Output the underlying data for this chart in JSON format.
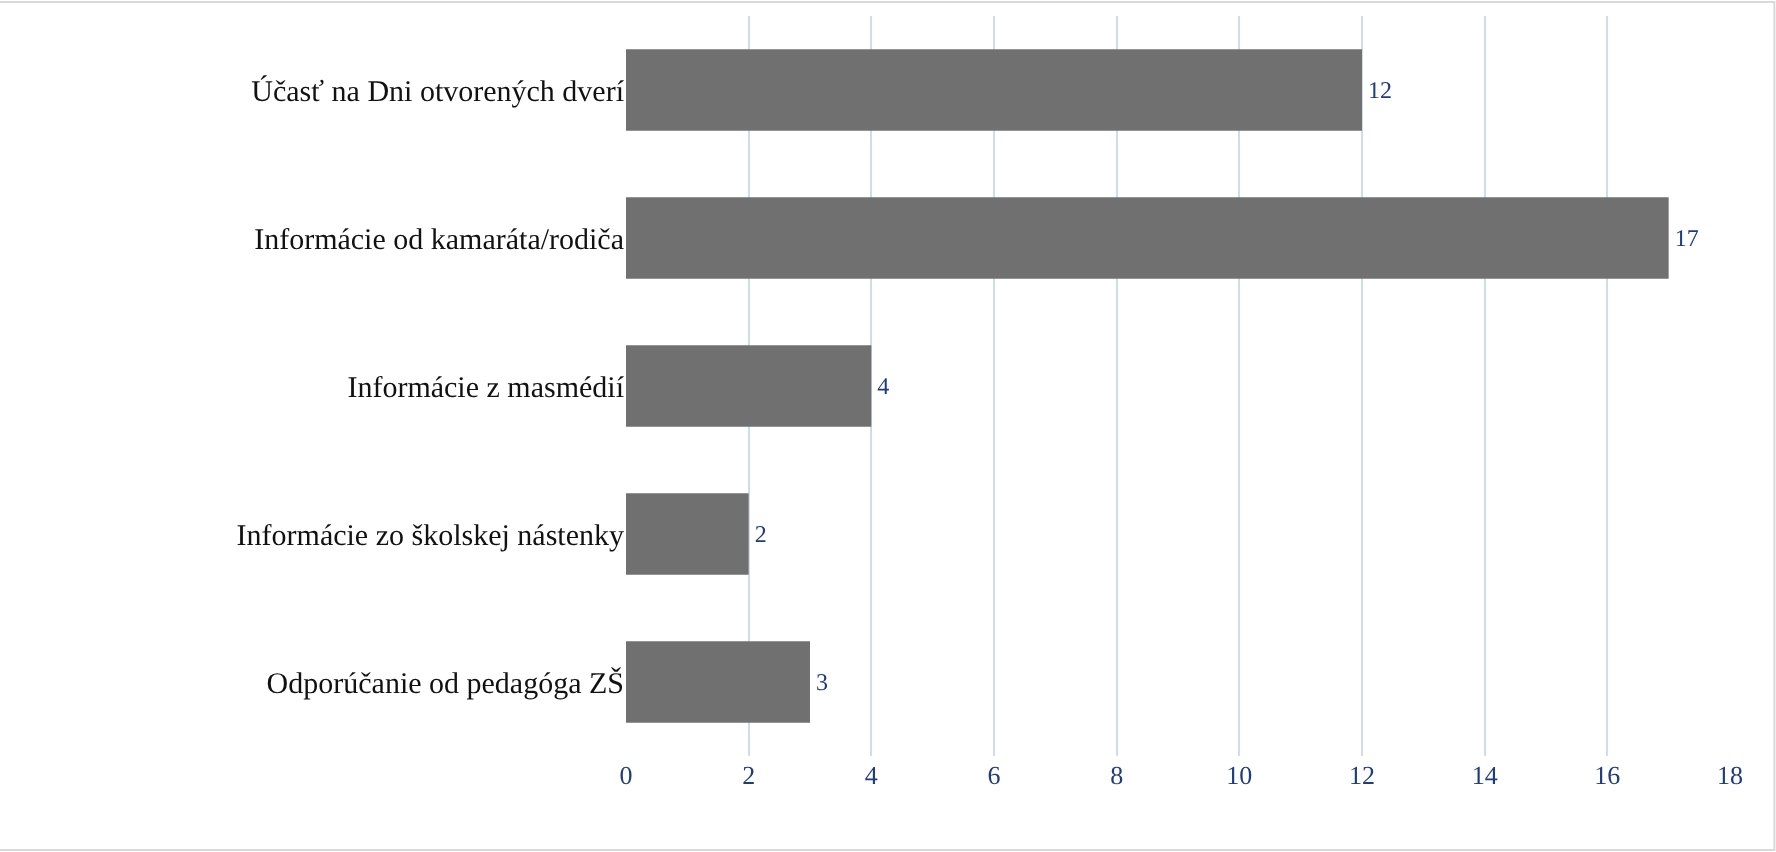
{
  "chart_data": {
    "type": "bar",
    "orientation": "horizontal",
    "categories": [
      "Účasť na Dni otvorených dverí",
      "Informácie od kamaráta/rodiča",
      "Informácie z masmédií",
      "Informácie zo školskej nástenky",
      "Odporúčanie od pedagóga ZŠ"
    ],
    "values": [
      12,
      17,
      4,
      2,
      3
    ],
    "color": "#707070",
    "xlim": [
      0,
      18
    ],
    "xticks": [
      0,
      2,
      4,
      6,
      8,
      10,
      12,
      14,
      16,
      18
    ],
    "grid": "x",
    "data_labels": true
  }
}
